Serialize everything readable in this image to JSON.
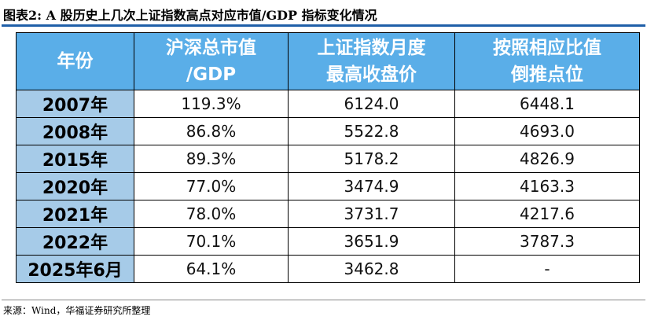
{
  "title": "图表2: A 股历史上几次上证指数高点对应市值/GDP 指标变化情况",
  "headers": [
    {
      "line1": "年份",
      "line2": ""
    },
    {
      "line1": "沪深总市值",
      "line2": "/GDP"
    },
    {
      "line1": "上证指数月度",
      "line2": "最高收盘价"
    },
    {
      "line1": "按照相应比值",
      "line2": "倒推点位"
    }
  ],
  "rows": [
    {
      "year": "2007年",
      "ratio": "119.3%",
      "close": "6124.0",
      "implied": "6448.1"
    },
    {
      "year": "2008年",
      "ratio": "86.8%",
      "close": "5522.8",
      "implied": "4693.0"
    },
    {
      "year": "2015年",
      "ratio": "89.3%",
      "close": "5178.2",
      "implied": "4826.9"
    },
    {
      "year": "2020年",
      "ratio": "77.0%",
      "close": "3474.9",
      "implied": "4163.3"
    },
    {
      "year": "2021年",
      "ratio": "78.0%",
      "close": "3731.7",
      "implied": "4217.6"
    },
    {
      "year": "2022年",
      "ratio": "70.1%",
      "close": "3651.9",
      "implied": "3787.3"
    },
    {
      "year": "2025年6月",
      "ratio": "64.1%",
      "close": "3462.8",
      "implied": "-"
    }
  ],
  "source": "来源：Wind，华福证券研究所整理",
  "colors": {
    "header_bg": "#5aaee8",
    "year_bg": "#a6cbe8",
    "rule": "#1f5fa8"
  }
}
